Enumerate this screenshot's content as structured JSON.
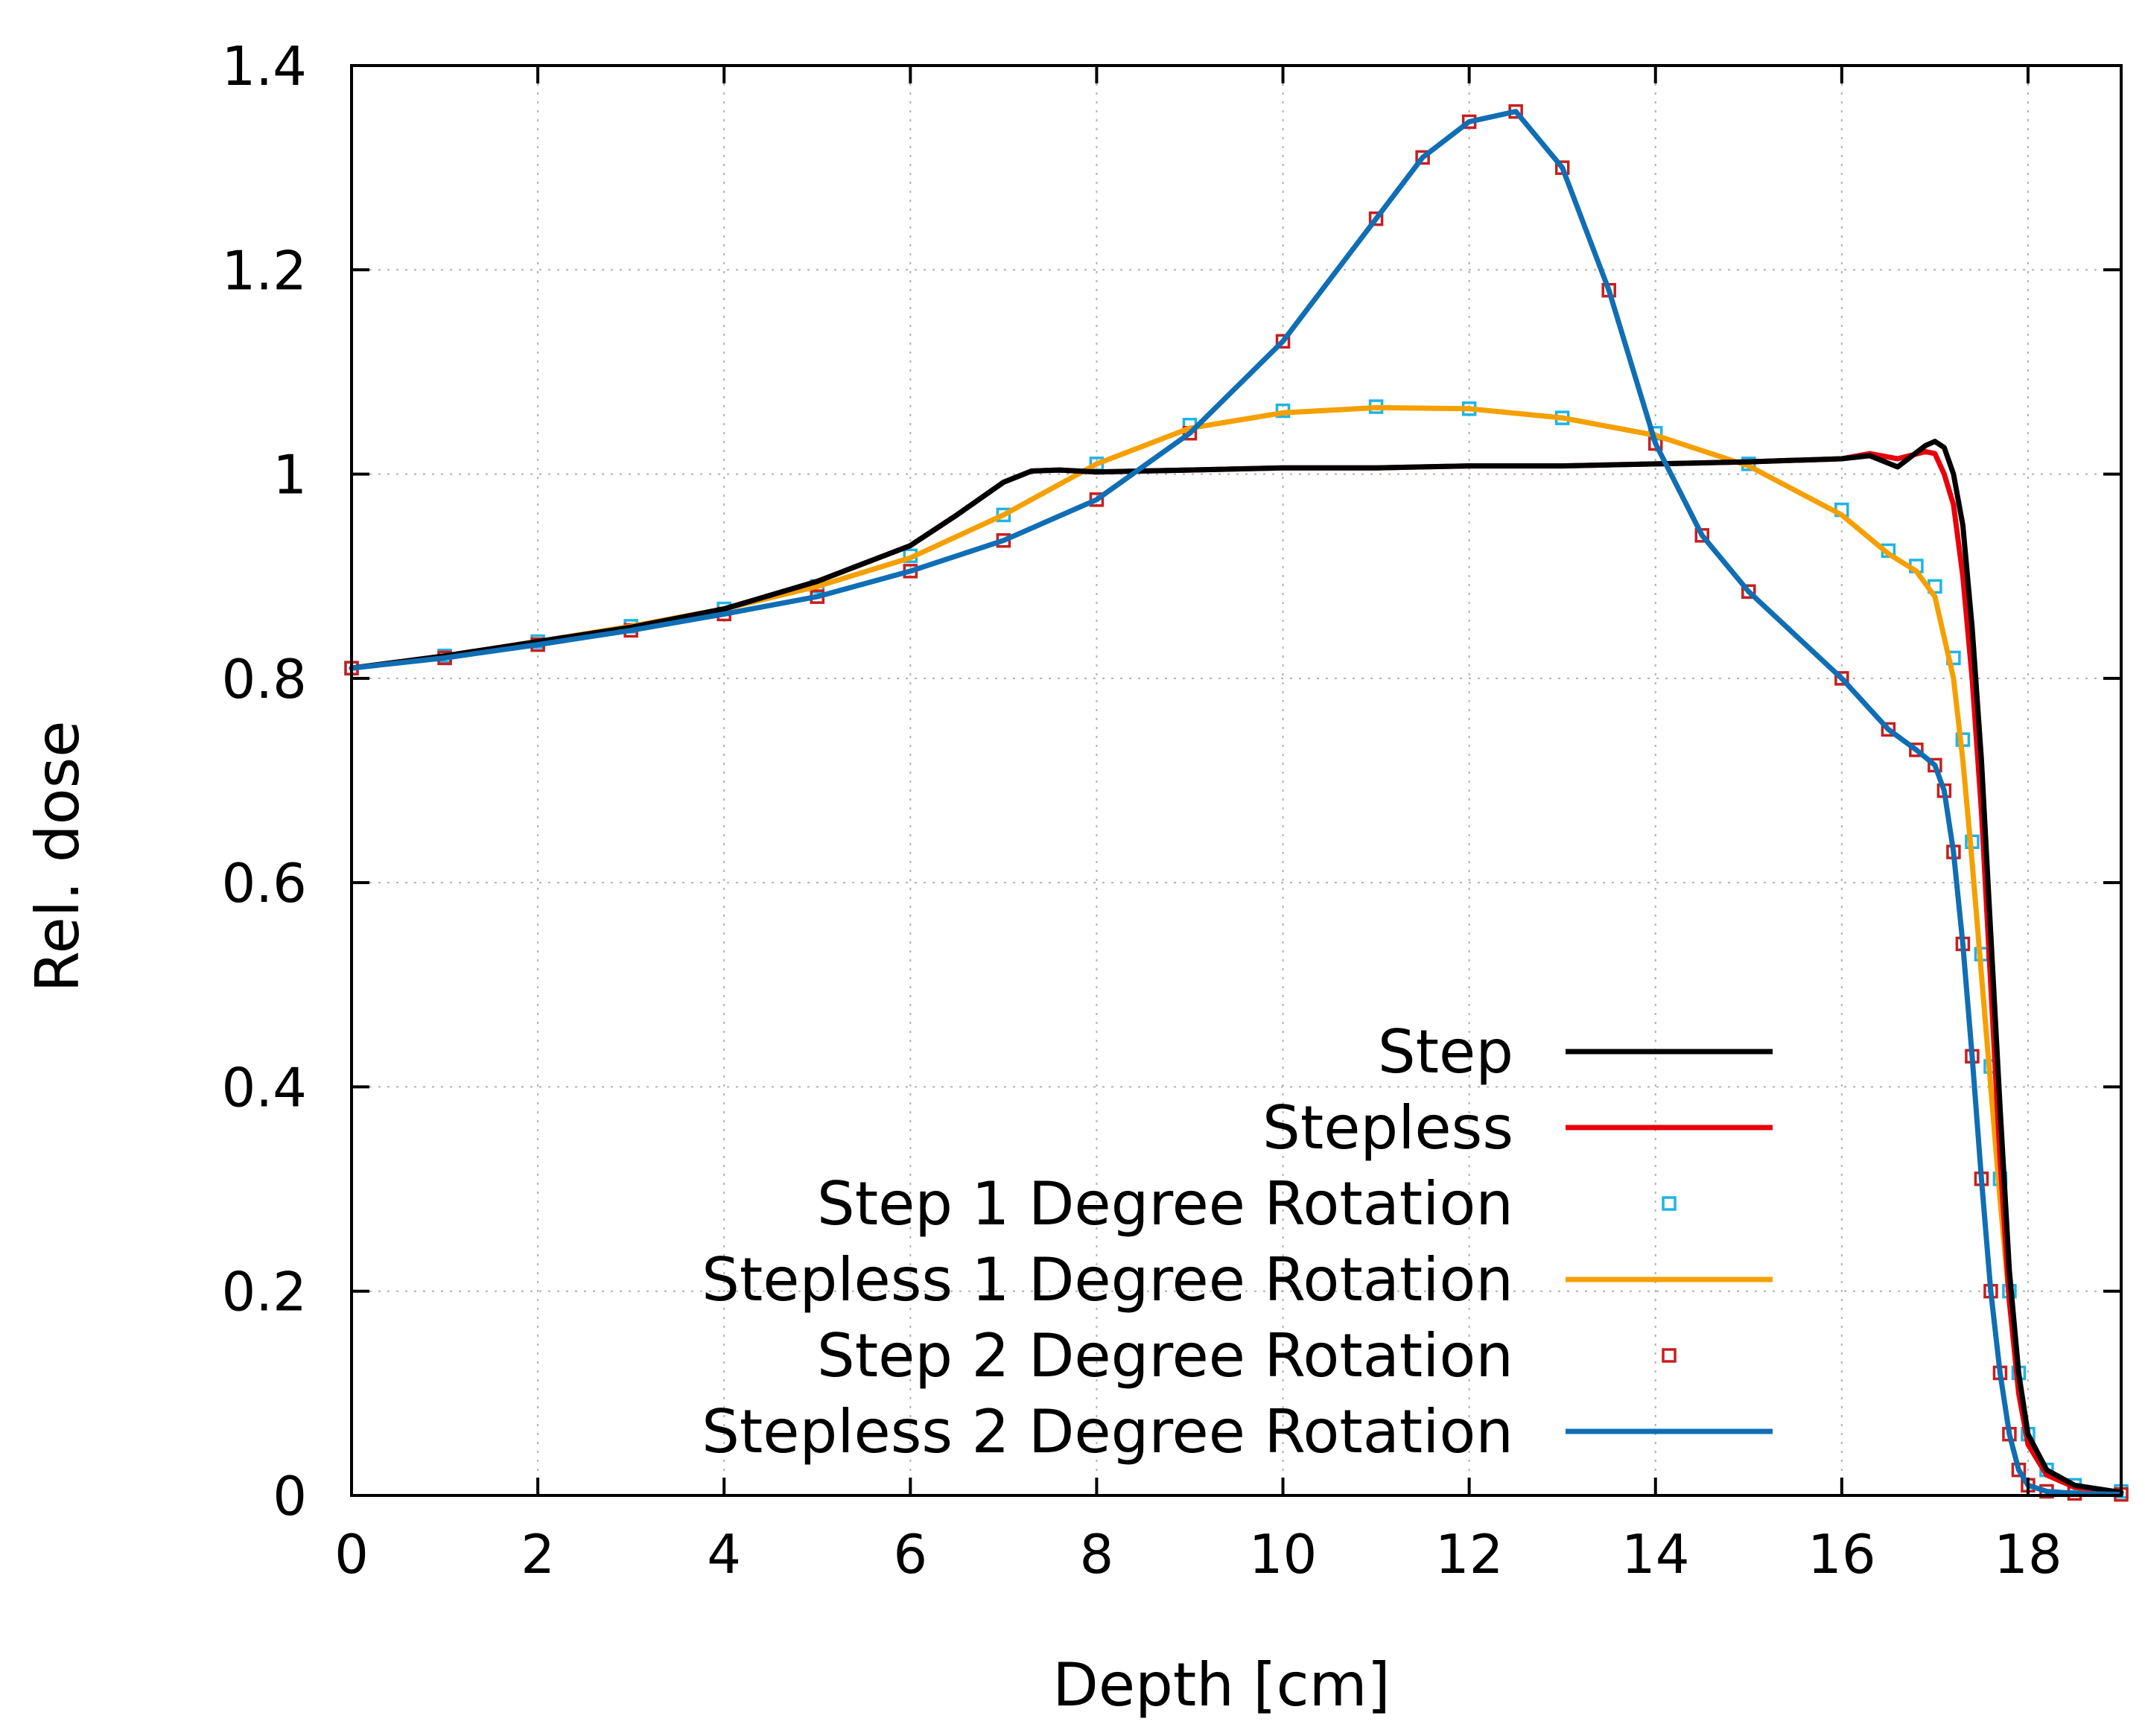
{
  "chart_data": {
    "type": "line",
    "title": "",
    "xlabel": "Depth [cm]",
    "ylabel": "Rel. dose",
    "xlim": [
      0,
      19
    ],
    "ylim": [
      0,
      1.4
    ],
    "x_ticks": [
      0,
      2,
      4,
      6,
      8,
      10,
      12,
      14,
      16,
      18
    ],
    "x_tick_labels": [
      "0",
      "2",
      "4",
      "6",
      "8",
      "10",
      "12",
      "14",
      "16",
      "18"
    ],
    "y_ticks": [
      0,
      0.2,
      0.4,
      0.6,
      0.8,
      1.0,
      1.2,
      1.4
    ],
    "y_tick_labels": [
      "0",
      "0.2",
      "0.4",
      "0.6",
      "0.8",
      "1",
      "1.2",
      "1.4"
    ],
    "grid": true,
    "legend_position": "bottom-right",
    "series": [
      {
        "name": "Step",
        "style": "line",
        "color": "#000000",
        "x": [
          0,
          1,
          2,
          3,
          4,
          5,
          6,
          6.5,
          7,
          7.3,
          7.6,
          8,
          9,
          10,
          11,
          12,
          13,
          14,
          15,
          16,
          16.3,
          16.6,
          16.9,
          17.0,
          17.1,
          17.2,
          17.3,
          17.4,
          17.5,
          17.6,
          17.7,
          17.8,
          17.9,
          18.0,
          18.2,
          18.5,
          19
        ],
        "y": [
          0.81,
          0.822,
          0.836,
          0.85,
          0.868,
          0.895,
          0.93,
          0.96,
          0.992,
          1.003,
          1.004,
          1.002,
          1.004,
          1.006,
          1.006,
          1.008,
          1.008,
          1.01,
          1.012,
          1.015,
          1.018,
          1.007,
          1.028,
          1.032,
          1.026,
          1.0,
          0.95,
          0.85,
          0.72,
          0.55,
          0.38,
          0.22,
          0.12,
          0.06,
          0.025,
          0.01,
          0.003
        ]
      },
      {
        "name": "Stepless",
        "style": "line",
        "color": "#e8000b",
        "x": [
          0,
          1,
          2,
          3,
          4,
          5,
          6,
          6.5,
          7,
          7.3,
          7.6,
          8,
          9,
          10,
          11,
          12,
          13,
          14,
          15,
          16,
          16.3,
          16.6,
          16.9,
          17.0,
          17.1,
          17.2,
          17.3,
          17.4,
          17.5,
          17.6,
          17.7,
          17.8,
          17.9,
          18.0,
          18.2,
          18.5,
          19
        ],
        "y": [
          0.81,
          0.822,
          0.836,
          0.85,
          0.868,
          0.895,
          0.93,
          0.96,
          0.992,
          1.003,
          1.004,
          1.002,
          1.004,
          1.006,
          1.006,
          1.008,
          1.008,
          1.01,
          1.012,
          1.015,
          1.02,
          1.015,
          1.022,
          1.02,
          1.0,
          0.97,
          0.9,
          0.8,
          0.67,
          0.5,
          0.33,
          0.19,
          0.1,
          0.05,
          0.02,
          0.008,
          0.003
        ]
      },
      {
        "name": "Step 1 Degree Rotation",
        "style": "marker",
        "color": "#1fb4e6",
        "x": [
          0,
          1,
          2,
          3,
          4,
          5,
          6,
          7,
          8,
          9,
          10,
          11,
          12,
          13,
          14,
          15,
          16,
          16.5,
          16.8,
          17.0,
          17.2,
          17.3,
          17.4,
          17.5,
          17.6,
          17.7,
          17.8,
          17.9,
          18.0,
          18.2,
          18.5,
          19
        ],
        "y": [
          0.81,
          0.822,
          0.836,
          0.851,
          0.868,
          0.89,
          0.92,
          0.96,
          1.01,
          1.048,
          1.062,
          1.066,
          1.064,
          1.055,
          1.04,
          1.01,
          0.965,
          0.925,
          0.91,
          0.89,
          0.82,
          0.74,
          0.64,
          0.53,
          0.42,
          0.31,
          0.2,
          0.12,
          0.06,
          0.025,
          0.01,
          0.004
        ]
      },
      {
        "name": "Stepless 1 Degree Rotation",
        "style": "line",
        "color": "#f5a000",
        "x": [
          0,
          1,
          2,
          3,
          4,
          5,
          6,
          7,
          8,
          9,
          10,
          11,
          12,
          13,
          14,
          15,
          16,
          16.5,
          16.8,
          17.0,
          17.2,
          17.3,
          17.4,
          17.5,
          17.6,
          17.7,
          17.8,
          17.9,
          18.0,
          18.2,
          18.5,
          19
        ],
        "y": [
          0.81,
          0.822,
          0.836,
          0.851,
          0.868,
          0.89,
          0.918,
          0.96,
          1.01,
          1.045,
          1.06,
          1.065,
          1.064,
          1.055,
          1.038,
          1.008,
          0.96,
          0.922,
          0.905,
          0.88,
          0.8,
          0.72,
          0.62,
          0.51,
          0.4,
          0.29,
          0.19,
          0.11,
          0.055,
          0.022,
          0.008,
          0.003
        ]
      },
      {
        "name": "Step 2 Degree Rotation",
        "style": "marker",
        "color": "#c81e1e",
        "x": [
          0,
          1,
          2,
          3,
          4,
          5,
          6,
          7,
          8,
          9,
          10,
          11,
          11.5,
          12,
          12.5,
          13,
          13.5,
          14,
          14.5,
          15,
          16,
          16.5,
          16.8,
          17.0,
          17.1,
          17.2,
          17.3,
          17.4,
          17.5,
          17.6,
          17.7,
          17.8,
          17.9,
          18.0,
          18.2,
          18.5,
          19
        ],
        "y": [
          0.81,
          0.82,
          0.833,
          0.847,
          0.863,
          0.88,
          0.905,
          0.935,
          0.975,
          1.04,
          1.13,
          1.25,
          1.31,
          1.345,
          1.355,
          1.3,
          1.18,
          1.03,
          0.94,
          0.885,
          0.8,
          0.75,
          0.73,
          0.715,
          0.69,
          0.63,
          0.54,
          0.43,
          0.31,
          0.2,
          0.12,
          0.06,
          0.025,
          0.01,
          0.004,
          0.002,
          0.001
        ]
      },
      {
        "name": "Stepless 2 Degree Rotation",
        "style": "line",
        "color": "#0f6eb4",
        "x": [
          0,
          1,
          2,
          3,
          4,
          5,
          6,
          7,
          8,
          9,
          10,
          11,
          11.5,
          12,
          12.5,
          13,
          13.5,
          14,
          14.5,
          15,
          16,
          16.5,
          16.8,
          17.0,
          17.1,
          17.2,
          17.3,
          17.4,
          17.5,
          17.6,
          17.7,
          17.8,
          17.9,
          18.0,
          18.2,
          18.5,
          19
        ],
        "y": [
          0.81,
          0.82,
          0.833,
          0.847,
          0.863,
          0.88,
          0.905,
          0.935,
          0.975,
          1.04,
          1.13,
          1.25,
          1.31,
          1.345,
          1.355,
          1.3,
          1.18,
          1.03,
          0.94,
          0.885,
          0.8,
          0.75,
          0.73,
          0.715,
          0.69,
          0.63,
          0.54,
          0.43,
          0.31,
          0.2,
          0.12,
          0.06,
          0.025,
          0.01,
          0.004,
          0.002,
          0.001
        ]
      }
    ]
  }
}
